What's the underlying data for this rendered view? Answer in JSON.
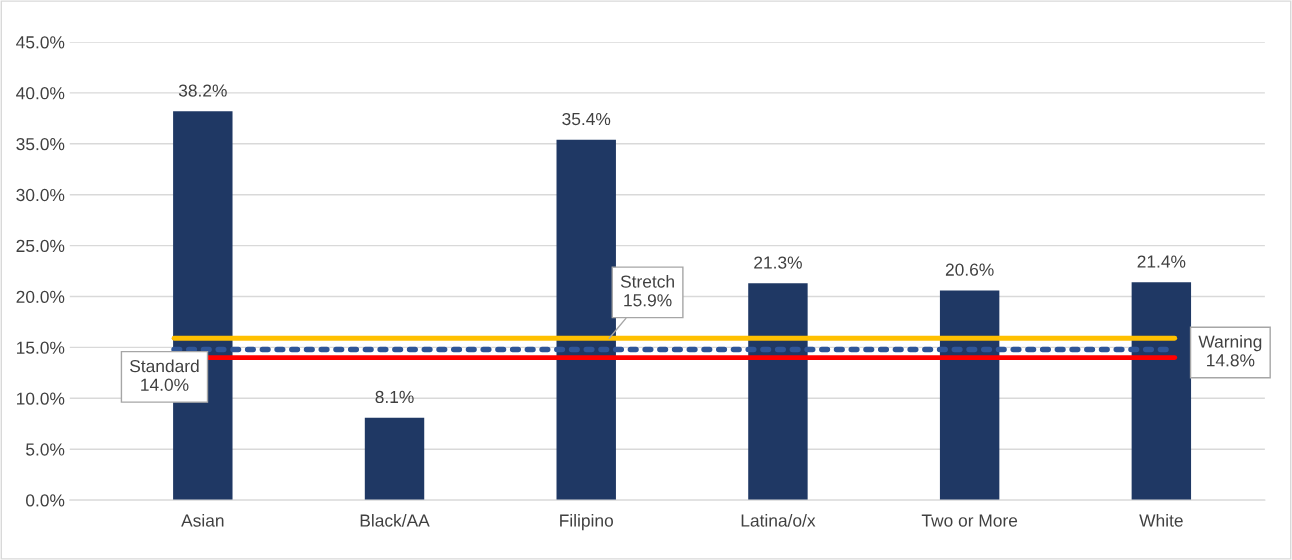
{
  "chart_data": {
    "type": "bar",
    "categories": [
      "Asian",
      "Black/AA",
      "Filipino",
      "Latina/o/x",
      "Two or More",
      "White"
    ],
    "values": [
      38.2,
      8.1,
      35.4,
      21.3,
      20.6,
      21.4
    ],
    "value_labels": [
      "38.2%",
      "8.1%",
      "35.4%",
      "21.3%",
      "20.6%",
      "21.4%"
    ],
    "color": "#1f3864",
    "ylim": [
      0,
      45
    ],
    "yticks": [
      {
        "value": 0,
        "label": "0.0%"
      },
      {
        "value": 5,
        "label": "5.0%"
      },
      {
        "value": 10,
        "label": "10.0%"
      },
      {
        "value": 15,
        "label": "15.0%"
      },
      {
        "value": 20,
        "label": "20.0%"
      },
      {
        "value": 25,
        "label": "25.0%"
      },
      {
        "value": 30,
        "label": "30.0%"
      },
      {
        "value": 35,
        "label": "35.0%"
      },
      {
        "value": 40,
        "label": "40.0%"
      },
      {
        "value": 45,
        "label": "45.0%"
      }
    ],
    "grid": "y",
    "ref_lines": [
      {
        "axis": "y",
        "value": 15.9,
        "label": "Stretch\n15.9%",
        "color": "#ffc000",
        "line_style": "solid"
      },
      {
        "axis": "y",
        "value": 14.8,
        "label": "Warning\n14.8%",
        "color": "#2f5597",
        "line_style": "dotted"
      },
      {
        "axis": "y",
        "value": 14.0,
        "label": "Standard\n14.0%",
        "color": "#ff0000",
        "line_style": "solid"
      }
    ]
  }
}
